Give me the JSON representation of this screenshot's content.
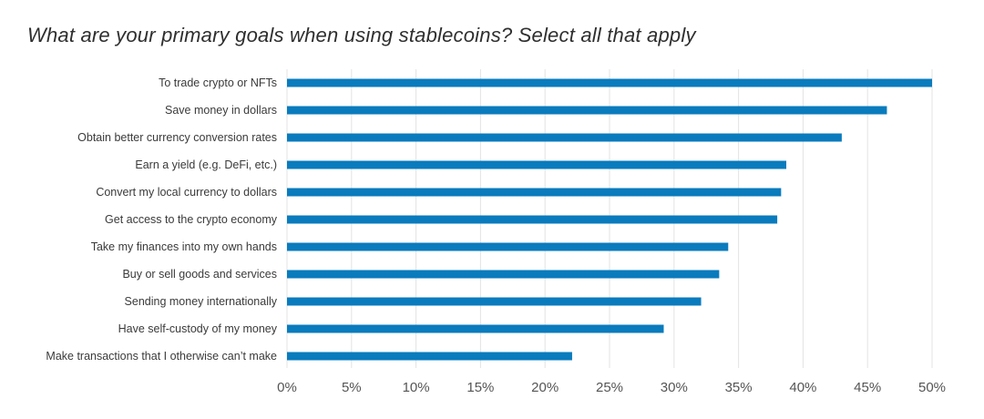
{
  "chart_data": {
    "type": "bar",
    "orientation": "horizontal",
    "title": "What are your primary goals when using stablecoins? Select all that apply",
    "categories": [
      "To trade crypto or NFTs",
      "Save money in dollars",
      "Obtain better currency conversion rates",
      "Earn a yield (e.g. DeFi, etc.)",
      "Convert my local currency to dollars",
      "Get access to the crypto economy",
      "Take my finances into my own hands",
      "Buy or sell goods and services",
      "Sending money internationally",
      "Have self-custody of my money",
      "Make transactions that I otherwise can’t make"
    ],
    "values": [
      50,
      46.5,
      43,
      38.7,
      38.3,
      38,
      34.2,
      33.5,
      32.1,
      29.2,
      22.1
    ],
    "xlim": [
      0,
      50
    ],
    "x_ticks": [
      0,
      5,
      10,
      15,
      20,
      25,
      30,
      35,
      40,
      45,
      50
    ],
    "x_tick_labels": [
      "0%",
      "5%",
      "10%",
      "15%",
      "20%",
      "25%",
      "30%",
      "35%",
      "40%",
      "45%",
      "50%"
    ],
    "xlabel": "",
    "ylabel": "",
    "grid": "vertical",
    "legend": "none",
    "bar_color": "#0a7bbd"
  }
}
